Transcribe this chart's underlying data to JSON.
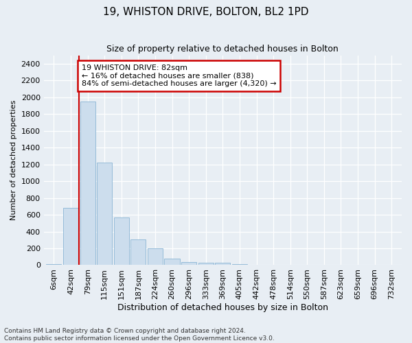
{
  "title1": "19, WHISTON DRIVE, BOLTON, BL2 1PD",
  "title2": "Size of property relative to detached houses in Bolton",
  "xlabel": "Distribution of detached houses by size in Bolton",
  "ylabel": "Number of detached properties",
  "categories": [
    "6sqm",
    "42sqm",
    "79sqm",
    "115sqm",
    "151sqm",
    "187sqm",
    "224sqm",
    "260sqm",
    "296sqm",
    "333sqm",
    "369sqm",
    "405sqm",
    "442sqm",
    "478sqm",
    "514sqm",
    "550sqm",
    "587sqm",
    "623sqm",
    "659sqm",
    "696sqm",
    "732sqm"
  ],
  "values": [
    10,
    680,
    1950,
    1220,
    570,
    310,
    200,
    80,
    40,
    30,
    25,
    15,
    5,
    4,
    2,
    1,
    1,
    0,
    0,
    0,
    0
  ],
  "bar_color": "#ccdded",
  "bar_edge_color": "#8ab4d4",
  "vline_color": "#cc0000",
  "vline_x": 1.5,
  "annotation_text": "19 WHISTON DRIVE: 82sqm\n← 16% of detached houses are smaller (838)\n84% of semi-detached houses are larger (4,320) →",
  "annotation_box_edgecolor": "#cc0000",
  "ylim": [
    0,
    2500
  ],
  "yticks": [
    0,
    200,
    400,
    600,
    800,
    1000,
    1200,
    1400,
    1600,
    1800,
    2000,
    2200,
    2400
  ],
  "footnote1": "Contains HM Land Registry data © Crown copyright and database right 2024.",
  "footnote2": "Contains public sector information licensed under the Open Government Licence v3.0.",
  "bg_color": "#e8eef4",
  "plot_bg_color": "#e8eef4",
  "title1_fontsize": 11,
  "title2_fontsize": 9,
  "xlabel_fontsize": 9,
  "ylabel_fontsize": 8,
  "tick_fontsize": 8,
  "annotation_fontsize": 8,
  "footnote_fontsize": 6.5
}
